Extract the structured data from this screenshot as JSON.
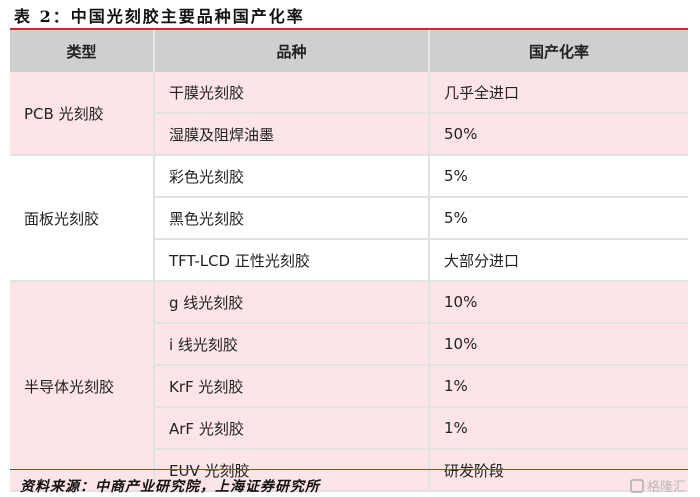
{
  "title": "表 2：中国光刻胶主要品种国产化率",
  "headers": [
    "类型",
    "品种",
    "国产化率"
  ],
  "groups": [
    {
      "type": "PCB 光刻胶",
      "rows": [
        [
          "干膜光刻胶",
          "几乎全进口"
        ],
        [
          "湿膜及阻焊油墨",
          "50%"
        ]
      ]
    },
    {
      "type": "面板光刻胶",
      "rows": [
        [
          "彩色光刻胶",
          "5%"
        ],
        [
          "黑色光刻胶",
          "5%"
        ],
        [
          "TFT-LCD 正性光刻胶",
          "大部分进口"
        ]
      ]
    },
    {
      "type": "半导体光刻胶",
      "rows": [
        [
          "g 线光刻胶",
          "10%"
        ],
        [
          "i 线光刻胶",
          "10%"
        ],
        [
          "KrF 光刻胶",
          "1%"
        ],
        [
          "ArF 光刻胶",
          "1%"
        ],
        [
          "EUV 光刻胶",
          "研发阶段"
        ]
      ]
    }
  ],
  "source": "资料来源：中商产业研究院，上海证券研究所",
  "watermark": "格隆汇",
  "colors": {
    "accent": "#e0222a",
    "header_bg": "#cfcfcf",
    "pink_row": "#fde4e6"
  }
}
